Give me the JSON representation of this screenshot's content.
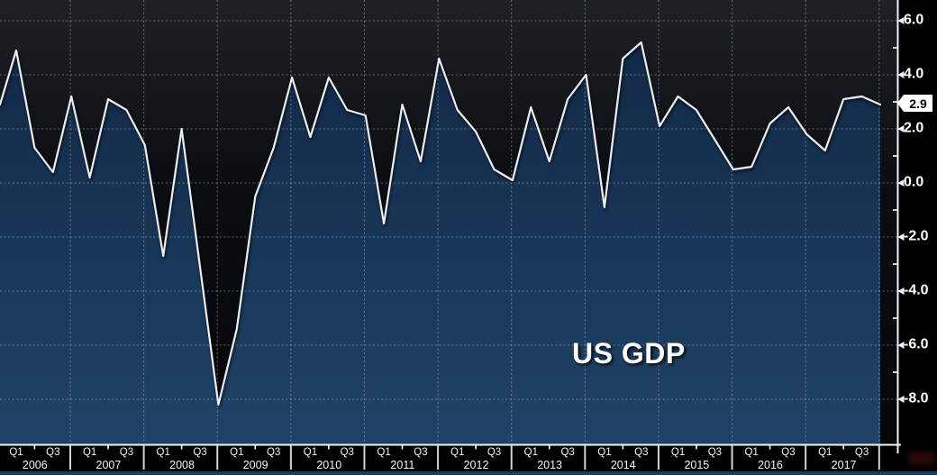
{
  "chart_data": {
    "type": "area",
    "title": "US GDP",
    "latest_value_label": "2.9",
    "left_edge_value": 2.9,
    "series": [
      {
        "year": "2006",
        "values": [
          4.9,
          1.3,
          0.4,
          3.2
        ]
      },
      {
        "year": "2007",
        "values": [
          0.2,
          3.1,
          2.7,
          1.4
        ]
      },
      {
        "year": "2008",
        "values": [
          -2.7,
          2.0,
          -3.1,
          -8.2
        ]
      },
      {
        "year": "2009",
        "values": [
          -5.4,
          -0.5,
          1.3,
          3.9
        ]
      },
      {
        "year": "2010",
        "values": [
          1.7,
          3.9,
          2.7,
          2.5
        ]
      },
      {
        "year": "2011",
        "values": [
          -1.5,
          2.9,
          0.8,
          4.6
        ]
      },
      {
        "year": "2012",
        "values": [
          2.7,
          1.9,
          0.5,
          0.1
        ]
      },
      {
        "year": "2013",
        "values": [
          2.8,
          0.8,
          3.1,
          4.0
        ]
      },
      {
        "year": "2014",
        "values": [
          -0.9,
          4.6,
          5.2,
          2.1
        ]
      },
      {
        "year": "2015",
        "values": [
          3.2,
          2.7,
          1.6,
          0.5
        ]
      },
      {
        "year": "2016",
        "values": [
          0.6,
          2.2,
          2.8,
          1.8
        ]
      },
      {
        "year": "2017",
        "values": [
          1.2,
          3.1,
          3.2,
          2.9
        ]
      }
    ],
    "x_axis": {
      "quarter_tick_labels": [
        "Q1",
        "Q3"
      ],
      "years": [
        "2006",
        "2007",
        "2008",
        "2009",
        "2010",
        "2011",
        "2012",
        "2013",
        "2014",
        "2015",
        "2016",
        "2017"
      ]
    },
    "y_axis": {
      "major_tick_labels": [
        "6.0",
        "4.0",
        "2.0",
        "0.0",
        "-2.0",
        "-4.0",
        "-6.0",
        "-8.0"
      ],
      "major_tick_values": [
        6,
        4,
        2,
        0,
        -2,
        -4,
        -6,
        -8
      ],
      "minor_tick_values": [
        5,
        3,
        1,
        -1,
        -3,
        -5,
        -7
      ],
      "grid": "dotted",
      "legend_position": "none"
    },
    "colors": {
      "background_top": "#1e2126",
      "background_mid": "#0b0e13",
      "background_bottom": "#04060a",
      "area_top": "#112643",
      "area_bottom": "#1f4368",
      "line": "#eceef0",
      "grid": "#b9c0c9",
      "axis": "#f2f3f4",
      "label_text": "#ffffff",
      "flag_bg": "#ffffff",
      "flag_text": "#000000",
      "bottom_strip": "#1c3c60"
    }
  }
}
